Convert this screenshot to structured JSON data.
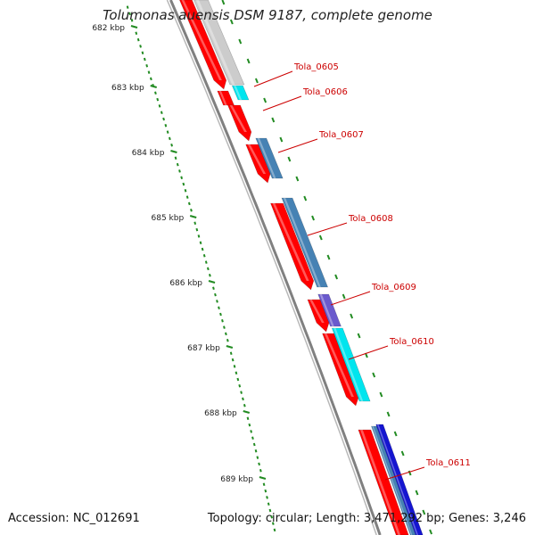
{
  "title": "Tolumonas auensis DSM 9187, complete genome",
  "footer": {
    "accession": "Accession: NC_012691",
    "summary": "Topology: circular; Length: 3,471,292 bp; Genes: 3,246"
  },
  "ruler_ticks": [
    "682 kbp",
    "683 kbp",
    "684 kbp",
    "685 kbp",
    "686 kbp",
    "687 kbp",
    "688 kbp",
    "689 kbp"
  ],
  "genes": [
    {
      "name": "Tola_0605",
      "color": "#00e5ee"
    },
    {
      "name": "Tola_0606",
      "color": "#cccccc"
    },
    {
      "name": "Tola_0607",
      "color": "#4682b4"
    },
    {
      "name": "Tola_0608",
      "color": "#4682b4"
    },
    {
      "name": "Tola_0609",
      "color": "#6a5acd"
    },
    {
      "name": "Tola_0610",
      "color": "#00e5ee"
    },
    {
      "name": "Tola_0611",
      "color": "#1515d0"
    }
  ],
  "colors": {
    "cds": "#ff0000",
    "backbone": "#808080",
    "ruler": "#228b22",
    "label": "#cc0000",
    "gc": "#cccccc"
  }
}
